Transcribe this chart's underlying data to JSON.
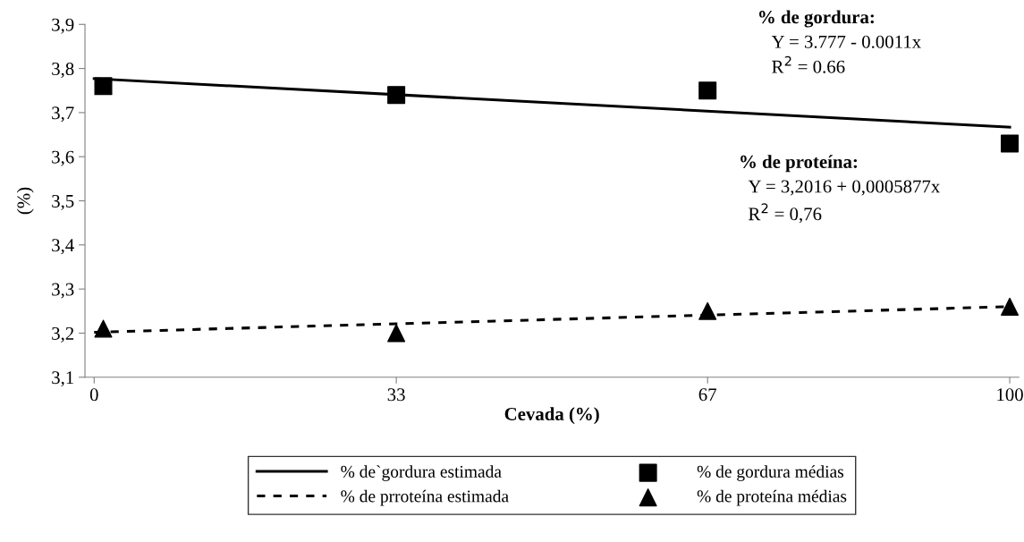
{
  "chart_data": {
    "type": "scatter",
    "xlabel": "Cevada (%)",
    "ylabel": "(%)",
    "xlim": [
      -1,
      101
    ],
    "xticks": [
      0,
      33,
      67,
      100
    ],
    "ylim": [
      3.1,
      3.9
    ],
    "yticks": [
      {
        "value": 3.1,
        "label": "3,1"
      },
      {
        "value": 3.2,
        "label": "3,2"
      },
      {
        "value": 3.3,
        "label": "3,3"
      },
      {
        "value": 3.4,
        "label": "3,4"
      },
      {
        "value": 3.5,
        "label": "3,5"
      },
      {
        "value": 3.6,
        "label": "3,6"
      },
      {
        "value": 3.7,
        "label": "3,7"
      },
      {
        "value": 3.8,
        "label": "3,8"
      },
      {
        "value": 3.9,
        "label": "3,9"
      }
    ],
    "grid": false,
    "legend": "bottom",
    "series": [
      {
        "name": "% de`gordura estimada",
        "type": "line",
        "color": "#000000",
        "line_style": "solid",
        "marker": "none",
        "x": [
          0,
          100
        ],
        "values": [
          3.777,
          3.667
        ]
      },
      {
        "name": "% de prroteína estimada",
        "type": "line",
        "color": "#000000",
        "line_style": "dashed",
        "marker": "none",
        "x": [
          0,
          100
        ],
        "values": [
          3.202,
          3.26
        ]
      },
      {
        "name": "% de gordura médias",
        "color": "#000000",
        "marker": "square",
        "x": [
          1,
          33,
          67,
          100
        ],
        "values": [
          3.76,
          3.74,
          3.75,
          3.63
        ]
      },
      {
        "name": "% de proteína médias",
        "color": "#000000",
        "marker": "triangle",
        "x": [
          1,
          33,
          67,
          100
        ],
        "values": [
          3.21,
          3.2,
          3.25,
          3.26
        ]
      }
    ],
    "annotations": [
      "% de gordura:",
      "Y = 3.777 - 0.0011x",
      "R$^{2}$ = 0.66",
      "% de proteína:",
      "Y = 3,2016 + 0,0005877x",
      "R$^{2}$ = 0,76"
    ]
  }
}
